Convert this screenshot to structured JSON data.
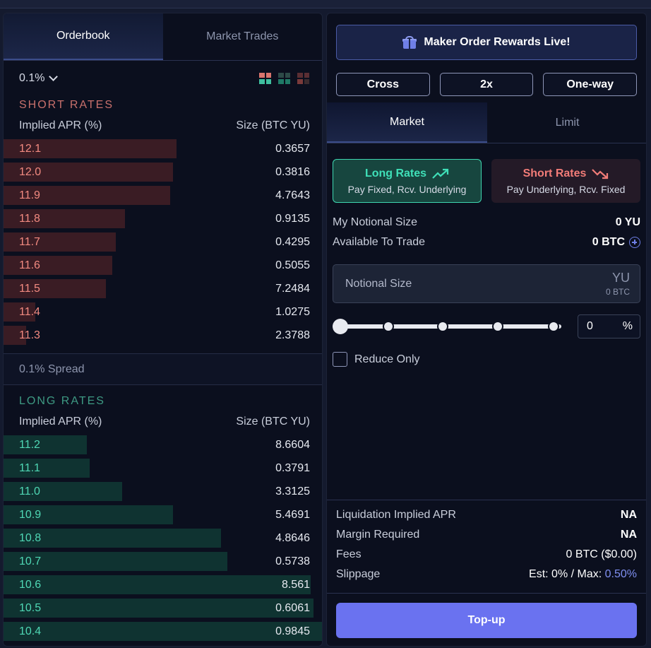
{
  "book_tabs": [
    "Orderbook",
    "Market Trades"
  ],
  "precision": "0.1%",
  "view_icons": [
    "both-sides-view-icon",
    "long-only-view-icon",
    "short-only-view-icon"
  ],
  "colors": {
    "short_price": "#f28a80",
    "long_price": "#4fd7b4",
    "short_bar": "#3a1c24",
    "long_bar": "#0f3331",
    "accent": "#6a72f0"
  },
  "short": {
    "title": "SHORT RATES",
    "col_price": "Implied APR (%)",
    "col_size": "Size (BTC YU)",
    "rows": [
      {
        "price": "12.1",
        "size": "0.3657",
        "depth": 0.54
      },
      {
        "price": "12.0",
        "size": "0.3816",
        "depth": 0.53
      },
      {
        "price": "11.9",
        "size": "4.7643",
        "depth": 0.52
      },
      {
        "price": "11.8",
        "size": "0.9135",
        "depth": 0.38
      },
      {
        "price": "11.7",
        "size": "0.4295",
        "depth": 0.35
      },
      {
        "price": "11.6",
        "size": "0.5055",
        "depth": 0.34
      },
      {
        "price": "11.5",
        "size": "7.2484",
        "depth": 0.32
      },
      {
        "price": "11.4",
        "size": "1.0275",
        "depth": 0.1
      },
      {
        "price": "11.3",
        "size": "2.3788",
        "depth": 0.07
      }
    ]
  },
  "spread": "0.1% Spread",
  "long": {
    "title": "LONG RATES",
    "col_price": "Implied APR (%)",
    "col_size": "Size (BTC YU)",
    "rows": [
      {
        "price": "11.2",
        "size": "8.6604",
        "depth": 0.26
      },
      {
        "price": "11.1",
        "size": "0.3791",
        "depth": 0.27
      },
      {
        "price": "11.0",
        "size": "3.3125",
        "depth": 0.37
      },
      {
        "price": "10.9",
        "size": "5.4691",
        "depth": 0.53
      },
      {
        "price": "10.8",
        "size": "4.8646",
        "depth": 0.68
      },
      {
        "price": "10.7",
        "size": "0.5738",
        "depth": 0.7
      },
      {
        "price": "10.6",
        "size": "8.561",
        "depth": 0.96
      },
      {
        "price": "10.5",
        "size": "0.6061",
        "depth": 0.97
      },
      {
        "price": "10.4",
        "size": "0.9845",
        "depth": 1.0
      }
    ]
  },
  "promo": "Maker Order Rewards Live!",
  "options": [
    "Cross",
    "2x",
    "One-way"
  ],
  "order_tabs": [
    "Market",
    "Limit"
  ],
  "long_btn": {
    "title": "Long Rates",
    "sub": "Pay Fixed, Rcv. Underlying"
  },
  "short_btn": {
    "title": "Short Rates",
    "sub": "Pay Underlying, Rcv. Fixed"
  },
  "notional_label": "My Notional Size",
  "notional_value": "0 YU",
  "available_label": "Available To Trade",
  "available_value": "0 BTC",
  "input": {
    "placeholder": "Notional Size",
    "unit": "YU",
    "sub_unit": "0 BTC"
  },
  "slider_percent": 0,
  "percent_value": "0",
  "percent_sign": "%",
  "reduce_only": "Reduce Only",
  "summary": {
    "liq_label": "Liquidation Implied APR",
    "liq_value": "NA",
    "margin_label": "Margin Required",
    "margin_value": "NA",
    "fees_label": "Fees",
    "fees_value": "0 BTC ($0.00)",
    "slip_label": "Slippage",
    "slip_est": "Est: 0% / Max:",
    "slip_max": "0.50%"
  },
  "topup": "Top-up"
}
